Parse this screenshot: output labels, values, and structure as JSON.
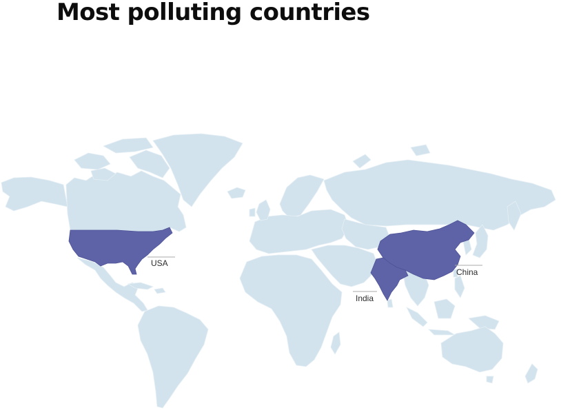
{
  "map": {
    "title": "Most polluting countries",
    "colors": {
      "land": "#d2e3ed",
      "land_border": "#e6eff5",
      "highlight": "#5e63a8",
      "highlight_border": "#4e5396",
      "callout_line": "#a9a9a9",
      "label_text": "#2b2b2b",
      "background": "#ffffff"
    },
    "highlighted_countries": [
      {
        "name": "USA",
        "label": "USA"
      },
      {
        "name": "India",
        "label": "India"
      },
      {
        "name": "China",
        "label": "China"
      }
    ]
  }
}
